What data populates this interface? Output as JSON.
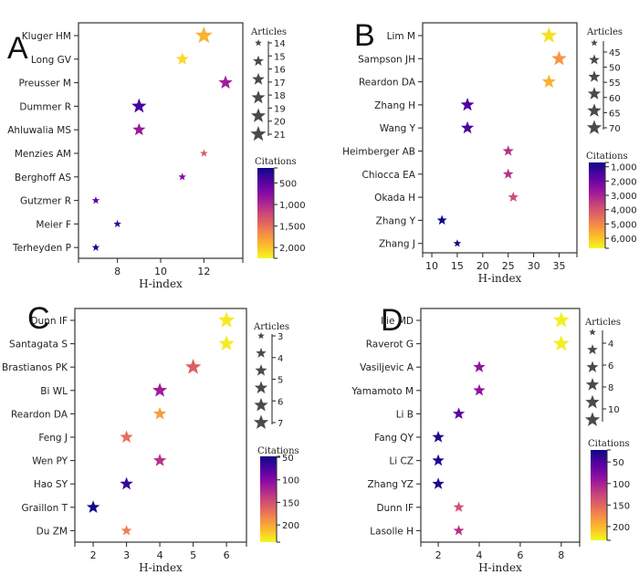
{
  "chart_data": [
    {
      "type": "scatter",
      "panel": "A",
      "title": "",
      "xlabel": "H-index",
      "ylabel": "",
      "xlim": [
        6.2,
        13.8
      ],
      "xticks": [
        8,
        10,
        12
      ],
      "xtick_labels": [
        "8",
        "10",
        "12"
      ],
      "categories": [
        "Kluger HM",
        "Long GV",
        "Preusser M",
        "Dummer R",
        "Ahluwalia MS",
        "Menzies AM",
        "Berghoff AS",
        "Gutzmer R",
        "Meier F",
        "Terheyden P"
      ],
      "x": [
        12,
        11,
        13,
        9,
        9,
        12,
        11,
        7,
        8,
        7
      ],
      "size": [
        21,
        16,
        17,
        18,
        16,
        14,
        14,
        14,
        14,
        13
      ],
      "color": [
        1900,
        2100,
        900,
        400,
        850,
        1350,
        750,
        550,
        350,
        200
      ],
      "marker": "star",
      "size_legend": {
        "title": "Articles",
        "ticks": [
          14,
          15,
          16,
          17,
          18,
          19,
          20,
          21
        ],
        "range": [
          14,
          21
        ]
      },
      "color_legend": {
        "title": "Citations",
        "colormap": "plasma-reversed",
        "range": [
          150,
          2250
        ],
        "ticks": [
          500,
          1000,
          1500,
          2000
        ],
        "tick_labels": [
          "500",
          "1,000",
          "1,500",
          "2,000"
        ]
      }
    },
    {
      "type": "scatter",
      "panel": "B",
      "title": "",
      "xlabel": "H-index",
      "ylabel": "",
      "xlim": [
        8.2,
        38.5
      ],
      "xticks": [
        10,
        15,
        20,
        25,
        30,
        35
      ],
      "xtick_labels": [
        "10",
        "15",
        "20",
        "25",
        "30",
        "35"
      ],
      "categories": [
        "Lim M",
        "Sampson JH",
        "Reardon DA",
        "Zhang H",
        "Wang Y",
        "Heimberger AB",
        "Chiocca EA",
        "Okada H",
        "Zhang Y",
        "Zhang J"
      ],
      "x": [
        33,
        35,
        33,
        17,
        17,
        25,
        25,
        26,
        12,
        15
      ],
      "size": [
        70,
        62,
        56,
        55,
        52,
        46,
        45,
        45,
        44,
        42
      ],
      "color": [
        6400,
        5200,
        5700,
        1500,
        1500,
        3300,
        3300,
        3900,
        700,
        700
      ],
      "marker": "star",
      "size_legend": {
        "title": "Articles",
        "ticks": [
          45,
          50,
          55,
          60,
          65,
          70
        ],
        "range": [
          42,
          70
        ]
      },
      "color_legend": {
        "title": "Citations",
        "colormap": "plasma-reversed",
        "range": [
          700,
          6700
        ],
        "ticks": [
          1000,
          2000,
          3000,
          4000,
          5000,
          6000
        ],
        "tick_labels": [
          "1,000",
          "2,000",
          "3,000",
          "4,000",
          "5,000",
          "6,000"
        ]
      }
    },
    {
      "type": "scatter",
      "panel": "C",
      "title": "",
      "xlabel": "H-index",
      "ylabel": "",
      "xlim": [
        1.45,
        6.6
      ],
      "xticks": [
        2,
        3,
        4,
        5,
        6
      ],
      "xtick_labels": [
        "2",
        "3",
        "4",
        "5",
        "6"
      ],
      "categories": [
        "Dunn IF",
        "Santagata S",
        "Brastianos PK",
        "Bi WL",
        "Reardon DA",
        "Feng J",
        "Wen PY",
        "Hao SY",
        "Graillon T",
        "Du ZM"
      ],
      "x": [
        6,
        6,
        5,
        4,
        4,
        3,
        4,
        3,
        2,
        3
      ],
      "size": [
        7,
        6.5,
        6.5,
        5.5,
        4.5,
        4.5,
        4.5,
        4.5,
        4.5,
        3.5
      ],
      "color": [
        232,
        232,
        160,
        115,
        195,
        170,
        130,
        65,
        50,
        180
      ],
      "marker": "star",
      "size_legend": {
        "title": "Articles",
        "ticks": [
          3,
          4,
          5,
          6,
          7
        ],
        "range": [
          3,
          7
        ]
      },
      "color_legend": {
        "title": "Citations",
        "colormap": "plasma-reversed",
        "range": [
          48,
          238
        ],
        "ticks": [
          50,
          100,
          150,
          200
        ],
        "tick_labels": [
          "50",
          "100",
          "150",
          "200"
        ]
      }
    },
    {
      "type": "scatter",
      "panel": "D",
      "title": "",
      "xlabel": "H-index",
      "ylabel": "",
      "xlim": [
        1.15,
        8.9
      ],
      "xticks": [
        2,
        4,
        6,
        8
      ],
      "xtick_labels": [
        "2",
        "4",
        "6",
        "8"
      ],
      "categories": [
        "Ilie MD",
        "Raverot G",
        "Vasiljevic A",
        "Yamamoto M",
        "Li B",
        "Fang QY",
        "Li CZ",
        "Zhang YZ",
        "Dunn IF",
        "Lasolle H"
      ],
      "x": [
        8,
        8,
        4,
        4,
        3,
        2,
        2,
        2,
        3,
        3
      ],
      "size": [
        11,
        11,
        5,
        5,
        5,
        5,
        5,
        5,
        4,
        4
      ],
      "color": [
        228,
        228,
        88,
        88,
        58,
        30,
        30,
        30,
        135,
        112
      ],
      "marker": "star",
      "size_legend": {
        "title": "Articles",
        "ticks": [
          4,
          6,
          8,
          10
        ],
        "range": [
          3,
          11
        ]
      },
      "color_legend": {
        "title": "Citations",
        "colormap": "plasma-reversed",
        "range": [
          22,
          232
        ],
        "ticks": [
          50,
          100,
          150,
          200
        ],
        "tick_labels": [
          "50",
          "100",
          "150",
          "200"
        ]
      }
    }
  ]
}
